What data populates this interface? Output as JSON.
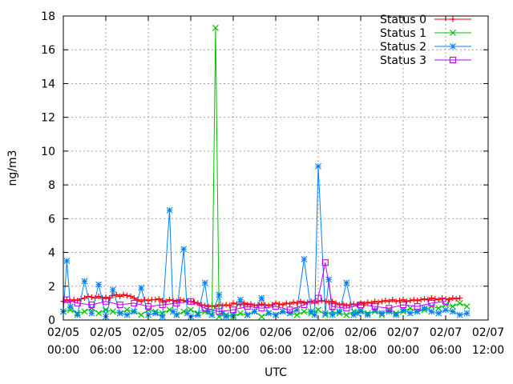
{
  "chart_data": {
    "type": "line",
    "title": "",
    "xlabel": "UTC",
    "ylabel": "ng/m3",
    "ylim": [
      0,
      18
    ],
    "yticks": [
      0,
      2,
      4,
      6,
      8,
      10,
      12,
      14,
      16,
      18
    ],
    "xlim_hours": [
      0,
      60
    ],
    "xticks": [
      {
        "hour": 0,
        "date": "02/05",
        "time": "00:00"
      },
      {
        "hour": 6,
        "date": "02/05",
        "time": "06:00"
      },
      {
        "hour": 12,
        "date": "02/05",
        "time": "12:00"
      },
      {
        "hour": 18,
        "date": "02/05",
        "time": "18:00"
      },
      {
        "hour": 24,
        "date": "02/06",
        "time": "00:00"
      },
      {
        "hour": 30,
        "date": "02/06",
        "time": "06:00"
      },
      {
        "hour": 36,
        "date": "02/06",
        "time": "12:00"
      },
      {
        "hour": 42,
        "date": "02/06",
        "time": "18:00"
      },
      {
        "hour": 48,
        "date": "02/07",
        "time": "00:00"
      },
      {
        "hour": 54,
        "date": "02/07",
        "time": "06:00"
      },
      {
        "hour": 60,
        "date": "02/07",
        "time": "12:00"
      }
    ],
    "grid": true,
    "legend_position": "top-right",
    "series": [
      {
        "name": "Status 0",
        "color": "#ff0000",
        "marker": "plus",
        "x": [
          0,
          0.5,
          1,
          1.5,
          2,
          2.5,
          3,
          3.5,
          4,
          4.5,
          5,
          5.5,
          6,
          6.5,
          7,
          7.5,
          8,
          8.5,
          9,
          9.5,
          10,
          10.5,
          11,
          11.5,
          12,
          12.5,
          13,
          13.5,
          14,
          14.5,
          15,
          15.5,
          16,
          16.5,
          17,
          17.5,
          18,
          18.5,
          19,
          19.5,
          20,
          20.5,
          21,
          21.5,
          22,
          22.5,
          23,
          23.5,
          24,
          24.5,
          25,
          25.5,
          26,
          26.5,
          27,
          27.5,
          28,
          28.5,
          29,
          29.5,
          30,
          30.5,
          31,
          31.5,
          32,
          32.5,
          33,
          33.5,
          34,
          34.5,
          35,
          35.5,
          36,
          36.5,
          37,
          37.5,
          38,
          38.5,
          39,
          39.5,
          40,
          40.5,
          41,
          41.5,
          42,
          42.5,
          43,
          43.5,
          44,
          44.5,
          45,
          45.5,
          46,
          46.5,
          47,
          47.5,
          48,
          48.5,
          49,
          49.5,
          50,
          50.5,
          51,
          51.5,
          52,
          52.5,
          53,
          53.5,
          54,
          54.5,
          55,
          55.5,
          56
        ],
        "y": [
          1.1,
          1.2,
          1.1,
          1.2,
          1.15,
          1.25,
          1.3,
          1.4,
          1.35,
          1.3,
          1.4,
          1.3,
          1.35,
          1.3,
          1.45,
          1.5,
          1.4,
          1.5,
          1.45,
          1.4,
          1.3,
          1.2,
          1.1,
          1.2,
          1.15,
          1.2,
          1.2,
          1.25,
          1.15,
          1.1,
          1.2,
          1.15,
          1.1,
          1.2,
          1.15,
          1.1,
          1.1,
          1.05,
          1.0,
          0.9,
          0.85,
          0.8,
          0.85,
          0.8,
          0.9,
          0.85,
          0.9,
          0.85,
          1.0,
          0.95,
          0.9,
          1.0,
          0.9,
          0.95,
          0.85,
          0.9,
          0.95,
          0.9,
          0.85,
          0.9,
          1.0,
          0.95,
          0.9,
          1.0,
          0.95,
          1.05,
          1.0,
          1.1,
          1.0,
          1.05,
          1.1,
          1.0,
          1.1,
          1.15,
          1.1,
          1.05,
          1.1,
          1.0,
          0.9,
          0.95,
          0.85,
          0.9,
          0.95,
          0.9,
          1.0,
          0.95,
          1.05,
          1.0,
          1.1,
          1.05,
          1.1,
          1.15,
          1.1,
          1.2,
          1.1,
          1.15,
          1.2,
          1.1,
          1.15,
          1.2,
          1.15,
          1.2,
          1.25,
          1.2,
          1.3,
          1.25,
          1.2,
          1.3,
          1.25,
          1.2,
          1.3,
          1.25,
          1.3
        ]
      },
      {
        "name": "Status 1",
        "color": "#00c000",
        "marker": "cross",
        "x": [
          0,
          1,
          2,
          3,
          4,
          5,
          6,
          7,
          8,
          9,
          10,
          11,
          12,
          13,
          14,
          15,
          16,
          17,
          18,
          19,
          20,
          21,
          21.5,
          22,
          23,
          24,
          25,
          26,
          27,
          28,
          29,
          30,
          31,
          32,
          33,
          34,
          35,
          36,
          37,
          38,
          39,
          40,
          41,
          42,
          43,
          44,
          45,
          46,
          47,
          48,
          49,
          50,
          51,
          52,
          53,
          54,
          55,
          56,
          57
        ],
        "y": [
          0.5,
          0.6,
          0.4,
          0.5,
          0.7,
          0.4,
          0.6,
          0.5,
          0.4,
          0.6,
          0.5,
          0.3,
          0.6,
          0.5,
          0.4,
          0.6,
          0.3,
          0.5,
          0.6,
          0.4,
          0.5,
          0.3,
          17.3,
          0.2,
          0.3,
          0.2,
          0.4,
          0.3,
          0.5,
          0.2,
          0.4,
          0.3,
          0.5,
          0.4,
          0.3,
          0.5,
          0.4,
          0.6,
          0.3,
          0.5,
          0.4,
          0.3,
          0.5,
          0.6,
          0.4,
          0.5,
          0.3,
          0.6,
          0.4,
          0.5,
          0.7,
          0.5,
          0.6,
          0.8,
          0.7,
          0.9,
          0.8,
          1.0,
          0.8
        ]
      },
      {
        "name": "Status 2",
        "color": "#0080ff",
        "marker": "star",
        "x": [
          0,
          0.5,
          1,
          2,
          3,
          4,
          5,
          6,
          7,
          8,
          9,
          10,
          11,
          12,
          13,
          14,
          15,
          15.5,
          16,
          17,
          17.5,
          18,
          19,
          20,
          20.5,
          21,
          22,
          22.5,
          23,
          24,
          25,
          26,
          27,
          28,
          29,
          30,
          31,
          32,
          33,
          34,
          35,
          35.5,
          36,
          37,
          37.5,
          38,
          39,
          40,
          41,
          41.5,
          42,
          43,
          44,
          45,
          46,
          47,
          48,
          49,
          50,
          51,
          52,
          53,
          54,
          55,
          56,
          57
        ],
        "y": [
          0.5,
          3.5,
          0.8,
          0.3,
          2.3,
          0.4,
          2.1,
          0.2,
          1.8,
          0.4,
          0.3,
          0.5,
          1.9,
          0.3,
          0.4,
          0.2,
          6.5,
          0.5,
          0.3,
          4.2,
          0.4,
          0.2,
          0.3,
          2.2,
          0.5,
          0.3,
          1.5,
          0.4,
          0.2,
          0.3,
          1.2,
          0.3,
          0.5,
          1.3,
          0.4,
          0.3,
          0.5,
          0.4,
          0.6,
          3.6,
          0.5,
          0.3,
          9.1,
          0.4,
          2.4,
          0.3,
          0.5,
          2.2,
          0.3,
          0.4,
          0.5,
          0.3,
          0.6,
          0.4,
          0.5,
          0.3,
          0.6,
          0.4,
          0.5,
          0.7,
          0.5,
          0.4,
          0.6,
          0.5,
          0.3,
          0.4
        ]
      },
      {
        "name": "Status 3",
        "color": "#c000ff",
        "marker": "square",
        "x": [
          0.5,
          2,
          4,
          6,
          8,
          10,
          12,
          14,
          16,
          18,
          20,
          22,
          24,
          26,
          28,
          30,
          32,
          34,
          36,
          37,
          38,
          40,
          42,
          44,
          46,
          48,
          50,
          52,
          54
        ],
        "y": [
          1.2,
          1.0,
          0.9,
          1.1,
          0.9,
          1.0,
          0.8,
          0.9,
          1.0,
          1.1,
          0.7,
          0.5,
          0.6,
          0.8,
          0.7,
          0.8,
          0.6,
          0.9,
          1.3,
          3.4,
          0.8,
          0.7,
          0.9,
          0.8,
          0.7,
          0.9,
          0.8,
          1.0,
          1.1
        ]
      }
    ]
  }
}
